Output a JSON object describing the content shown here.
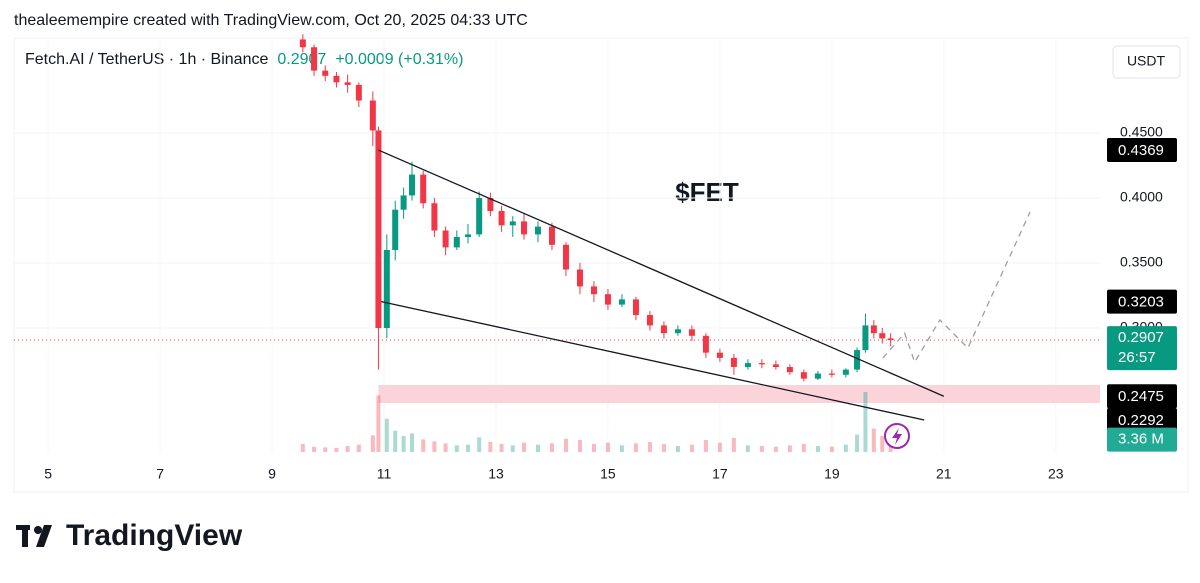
{
  "chart_data": {
    "type": "candlestick",
    "attribution": "thealeemempire created with TradingView.com, Oct 20, 2025 04:33 UTC",
    "title": "Fetch.AI / TetherUS · 1h · Binance",
    "last_price": 0.2907,
    "change": "+0.0009 (+0.31%)",
    "currency": "USDT",
    "annotation": "$FET",
    "brand": "TradingView",
    "countdown": "26:57",
    "up_color": "#089981",
    "down_color": "#f23645",
    "x": [
      9.55,
      9.75,
      9.95,
      10.15,
      10.35,
      10.55,
      10.8,
      10.9,
      11.05,
      11.2,
      11.35,
      11.5,
      11.7,
      11.9,
      12.1,
      12.3,
      12.5,
      12.7,
      12.9,
      13.1,
      13.3,
      13.5,
      13.75,
      14.0,
      14.25,
      14.5,
      14.75,
      15.0,
      15.25,
      15.5,
      15.75,
      16.0,
      16.25,
      16.5,
      16.75,
      17.0,
      17.25,
      17.5,
      17.75,
      18.0,
      18.25,
      18.5,
      18.75,
      19.0,
      19.25,
      19.45,
      19.6,
      19.75,
      19.9,
      20.05
    ],
    "open": [
      0.522,
      0.516,
      0.498,
      0.494,
      0.489,
      0.487,
      0.475,
      0.452,
      0.3,
      0.36,
      0.391,
      0.402,
      0.418,
      0.396,
      0.375,
      0.362,
      0.37,
      0.372,
      0.4,
      0.39,
      0.379,
      0.382,
      0.372,
      0.378,
      0.364,
      0.345,
      0.332,
      0.326,
      0.318,
      0.322,
      0.31,
      0.302,
      0.296,
      0.299,
      0.294,
      0.281,
      0.277,
      0.27,
      0.273,
      0.272,
      0.27,
      0.266,
      0.261,
      0.265,
      0.264,
      0.268,
      0.283,
      0.302,
      0.296,
      0.292
    ],
    "high": [
      0.526,
      0.518,
      0.502,
      0.497,
      0.495,
      0.489,
      0.482,
      0.455,
      0.372,
      0.398,
      0.408,
      0.428,
      0.421,
      0.4,
      0.378,
      0.375,
      0.38,
      0.405,
      0.404,
      0.394,
      0.386,
      0.388,
      0.382,
      0.381,
      0.366,
      0.35,
      0.336,
      0.33,
      0.326,
      0.324,
      0.313,
      0.305,
      0.302,
      0.302,
      0.296,
      0.284,
      0.28,
      0.276,
      0.276,
      0.275,
      0.272,
      0.268,
      0.267,
      0.268,
      0.269,
      0.285,
      0.311,
      0.306,
      0.3,
      0.296
    ],
    "low": [
      0.512,
      0.494,
      0.49,
      0.485,
      0.481,
      0.47,
      0.44,
      0.268,
      0.292,
      0.352,
      0.384,
      0.398,
      0.392,
      0.37,
      0.356,
      0.36,
      0.365,
      0.37,
      0.386,
      0.374,
      0.37,
      0.368,
      0.366,
      0.36,
      0.34,
      0.326,
      0.32,
      0.314,
      0.316,
      0.306,
      0.298,
      0.292,
      0.294,
      0.29,
      0.277,
      0.274,
      0.264,
      0.268,
      0.269,
      0.268,
      0.264,
      0.259,
      0.26,
      0.262,
      0.262,
      0.266,
      0.281,
      0.292,
      0.288,
      0.286
    ],
    "close": [
      0.516,
      0.498,
      0.494,
      0.489,
      0.487,
      0.475,
      0.452,
      0.3,
      0.36,
      0.391,
      0.402,
      0.418,
      0.396,
      0.375,
      0.362,
      0.37,
      0.372,
      0.4,
      0.39,
      0.379,
      0.382,
      0.372,
      0.378,
      0.364,
      0.345,
      0.332,
      0.326,
      0.318,
      0.322,
      0.31,
      0.302,
      0.296,
      0.299,
      0.294,
      0.281,
      0.277,
      0.27,
      0.273,
      0.272,
      0.27,
      0.266,
      0.261,
      0.265,
      0.264,
      0.268,
      0.283,
      0.302,
      0.296,
      0.292,
      0.2907
    ],
    "volume": [
      1.2,
      0.8,
      0.7,
      0.6,
      0.9,
      1.1,
      2.5,
      8.5,
      5.0,
      3.2,
      2.4,
      2.8,
      1.9,
      1.6,
      1.3,
      1.0,
      1.1,
      2.2,
      1.5,
      1.2,
      1.0,
      1.4,
      1.1,
      1.3,
      2.0,
      1.8,
      1.2,
      1.4,
      1.0,
      1.3,
      1.5,
      1.2,
      0.9,
      1.1,
      1.8,
      1.4,
      2.1,
      1.0,
      0.9,
      0.8,
      1.0,
      1.2,
      0.9,
      0.8,
      1.1,
      2.6,
      9.0,
      3.5,
      2.4,
      3.36
    ],
    "volume_label": {
      "value": 3.36,
      "label": "3.36 M"
    },
    "xlim": [
      4.39,
      23.79
    ],
    "ylim": [
      0.2046,
      0.5231
    ],
    "xticks": [
      5,
      7,
      9,
      11,
      13,
      15,
      17,
      19,
      21,
      23
    ],
    "yticks": [
      {
        "value": 0.45,
        "label": "0.4500"
      },
      {
        "value": 0.4,
        "label": "0.4000"
      },
      {
        "value": 0.35,
        "label": "0.3500"
      },
      {
        "value": 0.3,
        "label": "0.3000"
      }
    ],
    "grid": true,
    "trendlines": [
      {
        "x": [
          10.9,
          21.0
        ],
        "y": [
          0.4369,
          0.2475
        ]
      },
      {
        "x": [
          10.95,
          20.65
        ],
        "y": [
          0.3203,
          0.2292
        ]
      }
    ],
    "projection": {
      "x": [
        19.91,
        20.3,
        20.48,
        20.93,
        21.43,
        22.54
      ],
      "y": [
        0.2769,
        0.296,
        0.2738,
        0.3062,
        0.2846,
        0.3892
      ],
      "color": "#9e9e9e"
    },
    "zone": {
      "x_start": 10.9,
      "ylim": [
        0.2423,
        0.2562
      ],
      "color": "#fbd4d9"
    },
    "price_labels": [
      {
        "value": 0.4369,
        "label": "0.4369",
        "color": "#000000"
      },
      {
        "value": 0.3203,
        "label": "0.3203",
        "color": "#000000"
      },
      {
        "value": 0.2475,
        "label": "0.2475",
        "color": "#000000"
      },
      {
        "value": 0.2292,
        "label": "0.2292",
        "color": "#000000"
      }
    ]
  }
}
